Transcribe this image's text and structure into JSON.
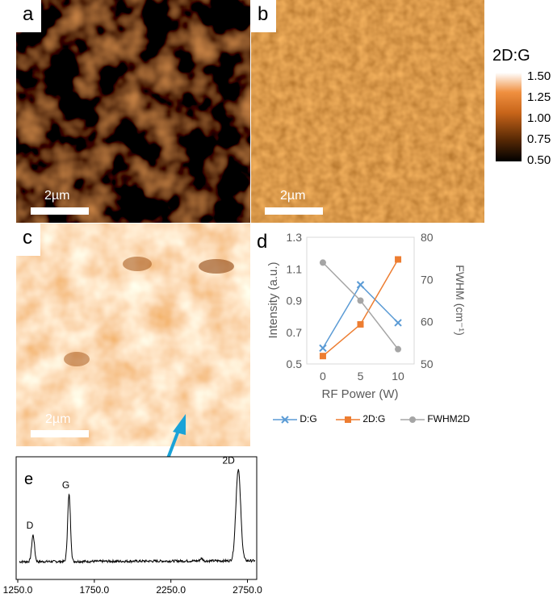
{
  "panels": {
    "a": {
      "label": "a",
      "scalebar": "2µm"
    },
    "b": {
      "label": "b",
      "scalebar": "2µm"
    },
    "c": {
      "label": "c",
      "scalebar": "2µm"
    },
    "d": {
      "label": "d"
    },
    "e": {
      "label": "e"
    }
  },
  "colorbar": {
    "title": "2D:G",
    "ticks": [
      "1.50",
      "1.25",
      "1.00",
      "0.75",
      "0.50"
    ],
    "range": [
      0.5,
      1.5
    ],
    "colors": [
      "#000000",
      "#5a2a05",
      "#c8651a",
      "#f09040",
      "#ffffff"
    ]
  },
  "chart_data": [
    {
      "type": "line",
      "title": "",
      "xlabel": "RF Power (W)",
      "ylabel": "Intensity (a.u.)",
      "y2label": "FWHM (cm⁻¹)",
      "x": [
        0,
        5,
        10
      ],
      "xticks": [
        "0",
        "5",
        "10"
      ],
      "ylim": [
        0.5,
        1.3
      ],
      "yticks": [
        "1.3",
        "1.1",
        "0.9",
        "0.7",
        "0.5"
      ],
      "y2lim": [
        50,
        80
      ],
      "y2ticks": [
        "80",
        "70",
        "60",
        "50"
      ],
      "grid": false,
      "legend": "bottom",
      "series": [
        {
          "name": "D:G",
          "axis": "left",
          "marker": "x",
          "color": "#5b9bd5",
          "values": [
            0.6,
            1.0,
            0.76
          ]
        },
        {
          "name": "2D:G",
          "axis": "left",
          "marker": "square",
          "color": "#ed7d31",
          "values": [
            0.55,
            0.75,
            1.16
          ]
        },
        {
          "name": "FWHM2D",
          "axis": "right",
          "marker": "circle",
          "color": "#a5a5a5",
          "values": [
            74,
            65,
            53.5
          ]
        }
      ]
    },
    {
      "type": "line",
      "title": "",
      "xlabel": "",
      "ylabel": "",
      "xlim": [
        1250,
        2800
      ],
      "xticks": [
        "1250.0",
        "1750.0",
        "2250.0",
        "2750.0"
      ],
      "xtick_values": [
        1250,
        1750,
        2250,
        2750
      ],
      "peaks": [
        {
          "label": "D",
          "x": 1350,
          "height": 0.27
        },
        {
          "label": "G",
          "x": 1585,
          "height": 0.68
        },
        {
          "label": "2D",
          "x": 2690,
          "height": 0.93
        }
      ]
    }
  ]
}
